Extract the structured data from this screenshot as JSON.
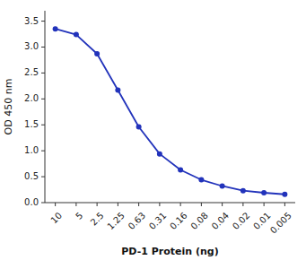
{
  "chart_data": {
    "type": "line",
    "categories": [
      "10",
      "5",
      "2.5",
      "1.25",
      "0.63",
      "0.31",
      "0.16",
      "0.08",
      "0.04",
      "0.02",
      "0.01",
      "0.005"
    ],
    "values": [
      3.35,
      3.24,
      2.87,
      2.17,
      1.46,
      0.94,
      0.63,
      0.44,
      0.32,
      0.23,
      0.19,
      0.16
    ],
    "color": "#2233bb",
    "marker": "circle",
    "xlabel": "PD-1 Protein (ng)",
    "ylabel": "OD 450 nm",
    "ylim": [
      0,
      3.7
    ],
    "yticks": [
      {
        "value": 0.0,
        "label": "0.0"
      },
      0.5,
      {
        "value": 1.0,
        "label": "1.0"
      },
      1.5,
      {
        "value": 2.0,
        "label": "2.0"
      },
      2.5,
      {
        "value": 3.0,
        "label": "3.0"
      },
      3.5
    ],
    "grid": false
  }
}
